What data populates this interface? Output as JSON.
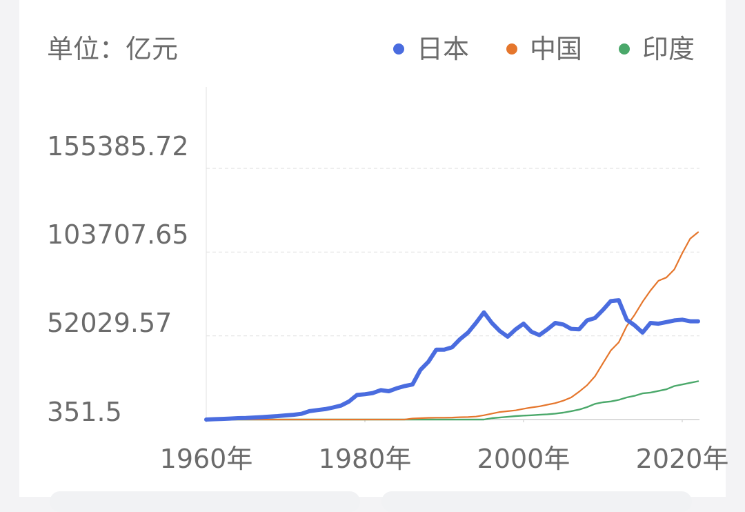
{
  "colors": {
    "japan": "#4a6cdf",
    "china": "#e5762c",
    "india": "#4aa86a",
    "text": "#6b6b6b",
    "grid": "#e4e4e4",
    "axis": "#cfcfcf"
  },
  "chart_data": {
    "type": "line",
    "unit_label": "单位：亿元",
    "legend": [
      {
        "key": "japan",
        "label": "日本"
      },
      {
        "key": "china",
        "label": "中国"
      },
      {
        "key": "india",
        "label": "印度"
      }
    ],
    "legend_placement": "top-right",
    "yticks": [
      {
        "value": 351.5,
        "label": "351.5"
      },
      {
        "value": 52029.57,
        "label": "52029.57"
      },
      {
        "value": 103707.65,
        "label": "103707.65"
      },
      {
        "value": 155385.72,
        "label": "155385.72"
      }
    ],
    "xticks": [
      {
        "value": 1960,
        "label": "1960年"
      },
      {
        "value": 1980,
        "label": "1980年"
      },
      {
        "value": 2000,
        "label": "2000年"
      },
      {
        "value": 2020,
        "label": "2020年"
      }
    ],
    "xlim": [
      1960,
      2022
    ],
    "ylim": [
      351.5,
      155385.72
    ],
    "grid": true,
    "years": [
      1960,
      1961,
      1962,
      1963,
      1964,
      1965,
      1966,
      1967,
      1968,
      1969,
      1970,
      1971,
      1972,
      1973,
      1974,
      1975,
      1976,
      1977,
      1978,
      1979,
      1980,
      1981,
      1982,
      1983,
      1984,
      1985,
      1986,
      1987,
      1988,
      1989,
      1990,
      1991,
      1992,
      1993,
      1994,
      1995,
      1996,
      1997,
      1998,
      1999,
      2000,
      2001,
      2002,
      2003,
      2004,
      2005,
      2006,
      2007,
      2008,
      2009,
      2010,
      2011,
      2012,
      2013,
      2014,
      2015,
      2016,
      2017,
      2018,
      2019,
      2020,
      2021,
      2022
    ],
    "series": [
      {
        "key": "japan",
        "name": "日本",
        "values": [
          351.5,
          560,
          750,
          950,
          1200,
          1350,
          1600,
          1850,
          2200,
          2500,
          2900,
          3300,
          3900,
          5500,
          6200,
          6800,
          7800,
          9000,
          11500,
          15500,
          16000,
          16700,
          18500,
          17800,
          19600,
          21000,
          22000,
          31000,
          36000,
          43500,
          43500,
          45000,
          50000,
          54000,
          60000,
          66500,
          60000,
          55000,
          51500,
          56000,
          59500,
          54500,
          52500,
          56000,
          60000,
          59000,
          56300,
          56000,
          61500,
          63000,
          68000,
          73500,
          74000,
          62000,
          58500,
          54000,
          60000,
          59500,
          60500,
          61500,
          62000,
          61000,
          61000
        ]
      },
      {
        "key": "china",
        "name": "中国",
        "values": [
          351.5,
          351.5,
          351.5,
          351.5,
          351.5,
          351.5,
          351.5,
          351.5,
          351.5,
          351.5,
          351.5,
          351.5,
          351.5,
          351.5,
          351.5,
          351.5,
          351.5,
          351.5,
          351.5,
          351.5,
          351.5,
          351.5,
          351.5,
          351.5,
          351.5,
          351.5,
          1000,
          1200,
          1400,
          1500,
          1500,
          1600,
          1800,
          1900,
          2200,
          3000,
          4000,
          5000,
          5500,
          6000,
          7000,
          7800,
          8500,
          9500,
          10500,
          12000,
          14000,
          17500,
          21500,
          27000,
          35000,
          43000,
          48000,
          58000,
          65000,
          73000,
          80000,
          86000,
          88000,
          93000,
          103000,
          112000,
          116000
        ]
      },
      {
        "key": "india",
        "name": "印度",
        "values": [
          351.5,
          351.5,
          351.5,
          351.5,
          351.5,
          351.5,
          351.5,
          351.5,
          351.5,
          351.5,
          351.5,
          351.5,
          351.5,
          351.5,
          351.5,
          351.5,
          351.5,
          351.5,
          351.5,
          351.5,
          351.5,
          351.5,
          351.5,
          351.5,
          351.5,
          351.5,
          351.5,
          351.5,
          351.5,
          351.5,
          351.5,
          351.5,
          351.5,
          351.5,
          351.5,
          351.5,
          1200,
          1600,
          2000,
          2500,
          2800,
          3000,
          3300,
          3600,
          4000,
          4600,
          5500,
          6500,
          8000,
          10000,
          11000,
          11500,
          12500,
          14000,
          15000,
          16500,
          17000,
          18000,
          19000,
          21000,
          22000,
          23000,
          24000
        ]
      }
    ]
  }
}
